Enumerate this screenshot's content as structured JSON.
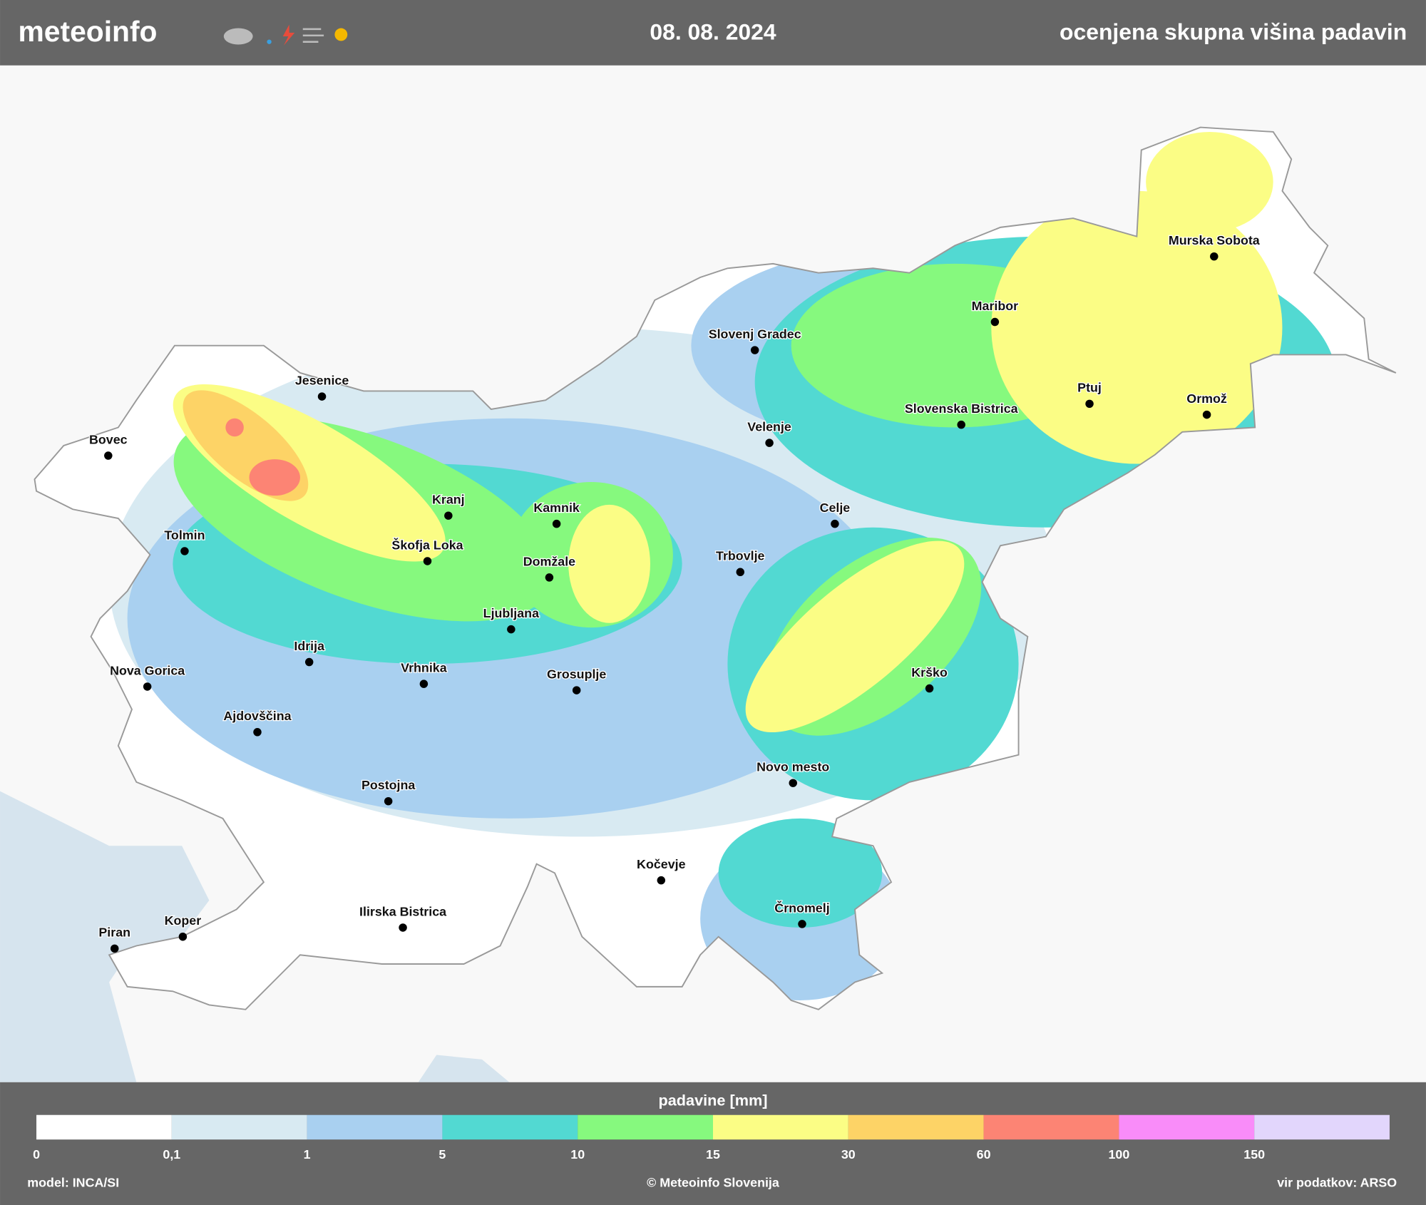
{
  "header": {
    "brand": "meteoinfo",
    "date": "08. 08. 2024",
    "title": "ocenjena skupna višina padavin"
  },
  "cities": [
    {
      "name": "Jesenice"
    },
    {
      "name": "Bovec"
    },
    {
      "name": "Tolmin"
    },
    {
      "name": "Kranj"
    },
    {
      "name": "Kamnik"
    },
    {
      "name": "Škofja Loka"
    },
    {
      "name": "Domžale"
    },
    {
      "name": "Ljubljana"
    },
    {
      "name": "Idrija"
    },
    {
      "name": "Nova Gorica"
    },
    {
      "name": "Vrhnika"
    },
    {
      "name": "Grosuplje"
    },
    {
      "name": "Ajdovščina"
    },
    {
      "name": "Postojna"
    },
    {
      "name": "Trbovlje"
    },
    {
      "name": "Celje"
    },
    {
      "name": "Velenje"
    },
    {
      "name": "Slovenj Gradec"
    },
    {
      "name": "Maribor"
    },
    {
      "name": "Slovenska Bistrica"
    },
    {
      "name": "Ptuj"
    },
    {
      "name": "Ormož"
    },
    {
      "name": "Murska Sobota"
    },
    {
      "name": "Krško"
    },
    {
      "name": "Novo mesto"
    },
    {
      "name": "Kočevje"
    },
    {
      "name": "Črnomelj"
    },
    {
      "name": "Ilirska Bistrica"
    },
    {
      "name": "Koper"
    },
    {
      "name": "Piran"
    }
  ],
  "legend": {
    "title": "padavine [mm]",
    "classes": [
      {
        "label": "0",
        "color": "#ffffff"
      },
      {
        "label": "0,1",
        "color": "#d8eaf2"
      },
      {
        "label": "1",
        "color": "#a9d0f0"
      },
      {
        "label": "5",
        "color": "#52d9d2"
      },
      {
        "label": "10",
        "color": "#86f97e"
      },
      {
        "label": "15",
        "color": "#fbfd85"
      },
      {
        "label": "30",
        "color": "#fdd366"
      },
      {
        "label": "60",
        "color": "#fc8474"
      },
      {
        "label": "100",
        "color": "#f98cf9"
      },
      {
        "label": "150",
        "color": "#e2d6fc"
      }
    ]
  },
  "footer": {
    "model": "model: INCA/SI",
    "copyright": "© Meteoinfo Slovenija",
    "source": "vir podatkov: ARSO"
  }
}
